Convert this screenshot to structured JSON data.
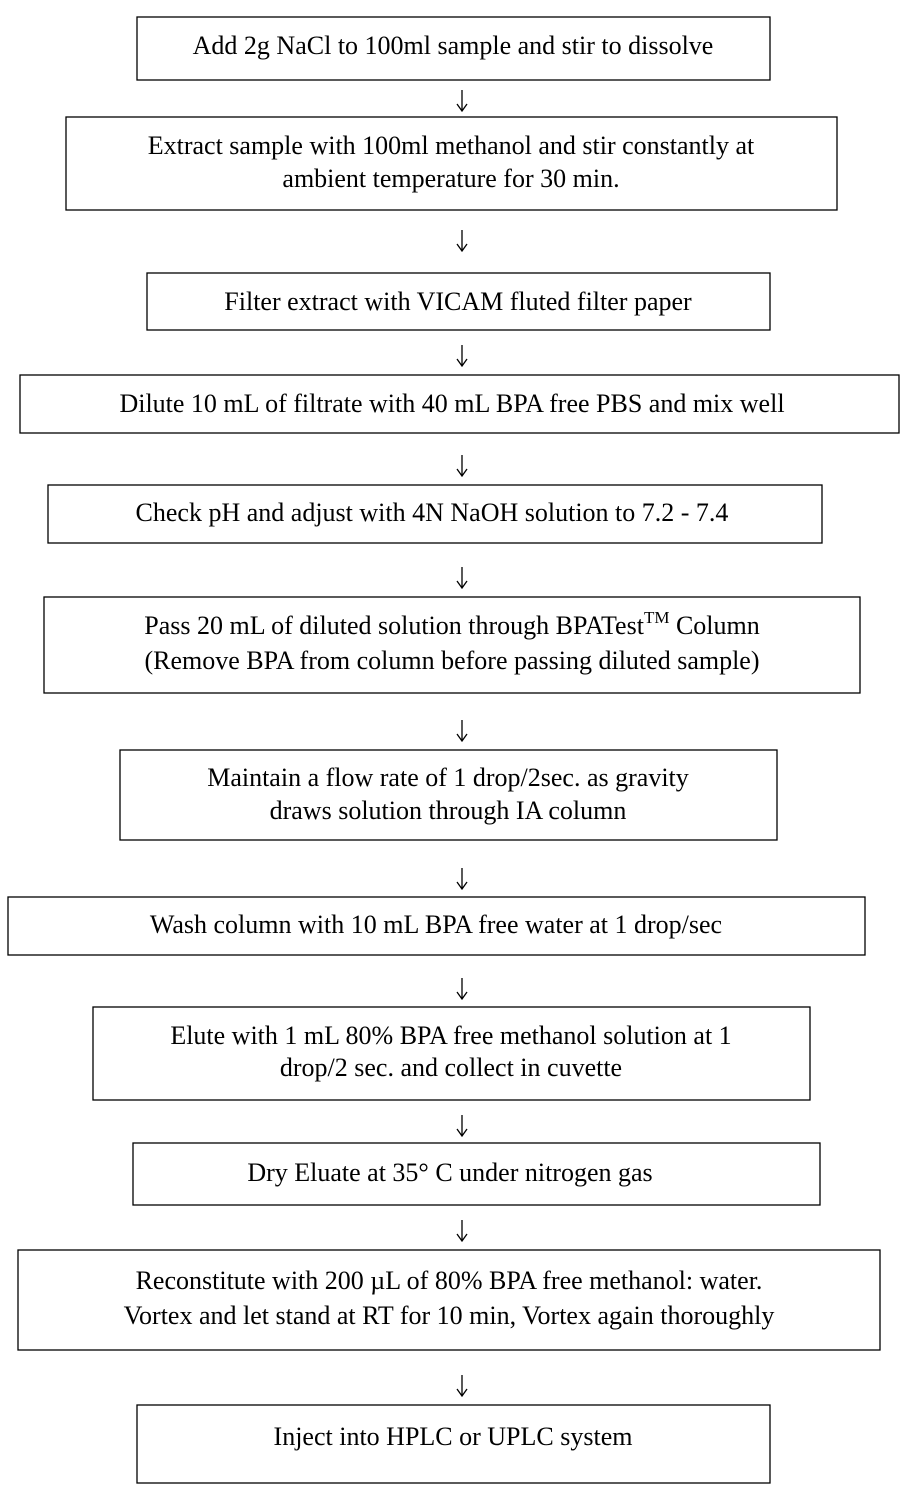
{
  "steps": [
    {
      "lines": [
        "Add 2g NaCl to 100ml sample and stir to dissolve"
      ]
    },
    {
      "lines": [
        "Extract sample with 100ml methanol and stir constantly at",
        "ambient temperature for 30 min."
      ]
    },
    {
      "lines": [
        "Filter extract with VICAM fluted filter paper"
      ]
    },
    {
      "lines": [
        "Dilute 10 mL of filtrate with 40 mL BPA free PBS and mix well"
      ]
    },
    {
      "lines": [
        "Check pH and adjust with 4N NaOH solution to 7.2 - 7.4"
      ]
    },
    {
      "lines": [
        {
          "text": "Pass 20 mL of diluted solution through BPATest",
          "sup": "TM",
          "after": " Column"
        },
        "(Remove BPA from column before passing diluted sample)"
      ]
    },
    {
      "lines": [
        "Maintain a flow rate of 1 drop/2sec. as gravity",
        "draws solution through IA column"
      ]
    },
    {
      "lines": [
        "Wash column with 10 mL BPA free water at 1 drop/sec"
      ]
    },
    {
      "lines": [
        "Elute with 1 mL 80% BPA free methanol solution at 1",
        "drop/2 sec. and collect in cuvette"
      ]
    },
    {
      "lines": [
        "Dry Eluate at 35° C under nitrogen gas"
      ]
    },
    {
      "lines": [
        "Reconstitute with 200 µL of 80% BPA free methanol: water.",
        "Vortex and let stand at RT for 10 min, Vortex again thoroughly"
      ]
    },
    {
      "lines": [
        "Inject into HPLC or UPLC system"
      ]
    }
  ]
}
